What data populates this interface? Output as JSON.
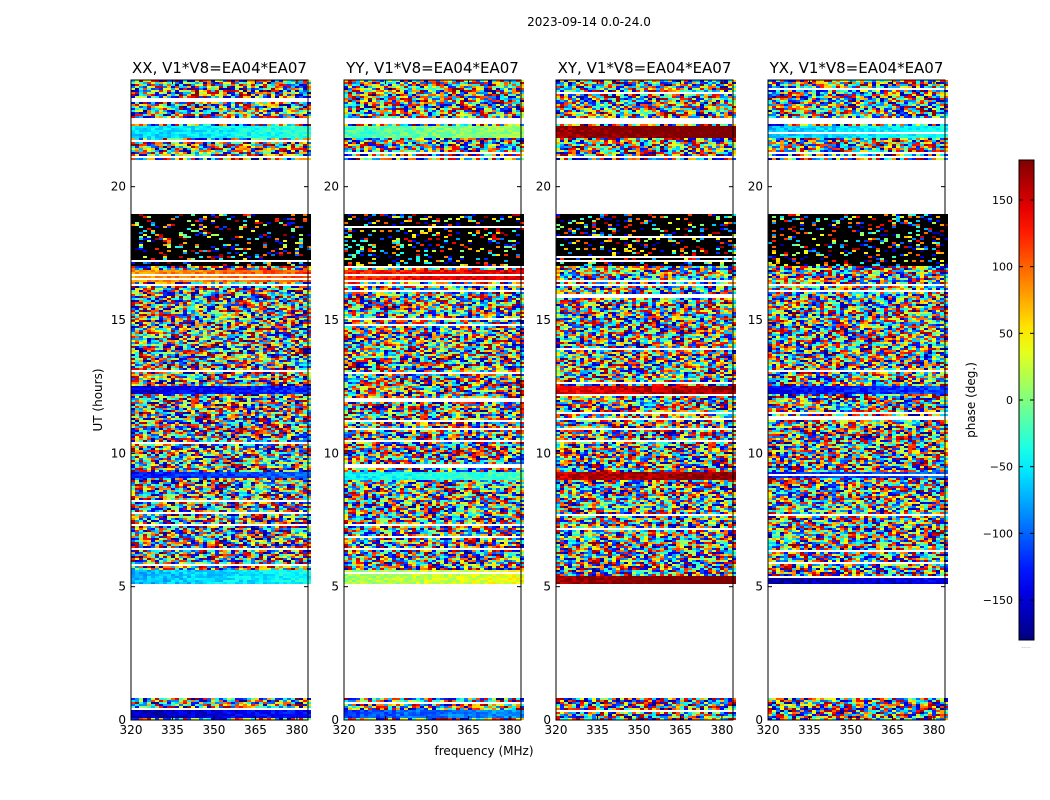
{
  "figure": {
    "suptitle": "2023-09-14 0.0-24.0",
    "xlabel": "frequency (MHz)",
    "ylabel": "UT (hours)",
    "colorbar_label": "phase (deg.)"
  },
  "chart_data": {
    "type": "heatmap",
    "x_ticks": [
      320,
      335,
      350,
      365,
      380
    ],
    "x_range": [
      320,
      384
    ],
    "y_ticks": [
      0,
      5,
      10,
      15,
      20
    ],
    "y_range": [
      0,
      24
    ],
    "colorbar_ticks": [
      150,
      100,
      50,
      0,
      -50,
      -100,
      -150
    ],
    "colorbar_range": [
      -180,
      180
    ],
    "colormap": "jet",
    "panels": [
      {
        "title": "XX, V1*V8=EA04*EA07",
        "pol": "XX"
      },
      {
        "title": "YY, V1*V8=EA04*EA07",
        "pol": "YY"
      },
      {
        "title": "XY, V1*V8=EA04*EA07",
        "pol": "XY"
      },
      {
        "title": "YX, V1*V8=EA04*EA07",
        "pol": "YX"
      }
    ],
    "blanked_ut_ranges": [
      [
        0.85,
        5.1
      ],
      [
        16.3,
        16.35
      ],
      [
        19.0,
        21.0
      ],
      [
        21.1,
        21.15
      ],
      [
        22.35,
        22.55
      ]
    ],
    "structured_ut_ranges": {
      "XX": [
        {
          "ut": [
            21.8,
            22.3
          ],
          "phase": -60
        },
        {
          "ut": [
            16.4,
            16.9
          ],
          "phase": 80
        },
        {
          "ut": [
            12.2,
            12.5
          ],
          "phase": -150
        },
        {
          "ut": [
            9.1,
            9.3
          ],
          "phase": -130
        },
        {
          "ut": [
            5.1,
            5.6
          ],
          "phase": -70
        },
        {
          "ut": [
            0.1,
            0.4
          ],
          "phase": -160
        }
      ],
      "YY": [
        {
          "ut": [
            21.8,
            22.3
          ],
          "phase": -20
        },
        {
          "ut": [
            16.4,
            16.9
          ],
          "phase": 120
        },
        {
          "ut": [
            9.0,
            9.3
          ],
          "phase": -50
        },
        {
          "ut": [
            5.1,
            5.6
          ],
          "phase": 10
        },
        {
          "ut": [
            0.1,
            0.4
          ],
          "phase": -110
        }
      ],
      "XY": [
        {
          "ut": [
            21.8,
            22.3
          ],
          "phase": 170
        },
        {
          "ut": [
            12.2,
            12.5
          ],
          "phase": 140
        },
        {
          "ut": [
            9.0,
            9.3
          ],
          "phase": 150
        },
        {
          "ut": [
            5.1,
            5.4
          ],
          "phase": 170
        }
      ],
      "YX": [
        {
          "ut": [
            21.8,
            22.3
          ],
          "phase": -70
        },
        {
          "ut": [
            12.2,
            12.5
          ],
          "phase": -140
        },
        {
          "ut": [
            9.1,
            9.3
          ],
          "phase": -130
        },
        {
          "ut": [
            5.1,
            5.4
          ],
          "phase": -170
        }
      ]
    },
    "dark_ut_ranges": [
      [
        17.0,
        19.0
      ]
    ],
    "footer_text": "....."
  }
}
